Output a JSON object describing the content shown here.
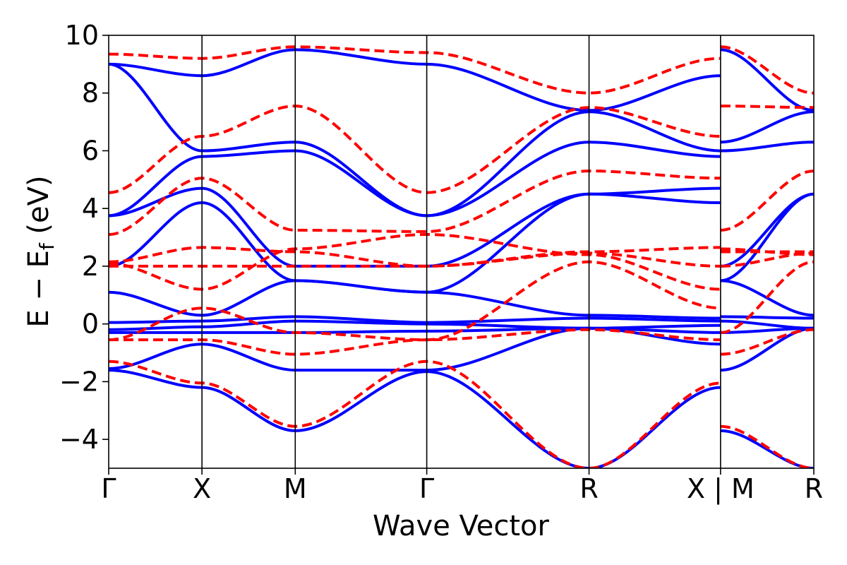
{
  "chart_data": {
    "type": "line",
    "title": "",
    "xlabel": "Wave Vector",
    "ylabel": {
      "main": "E − E",
      "subscript": "f",
      "unit": " (eV)"
    },
    "ylim": [
      -5,
      10
    ],
    "yticks": [
      -4,
      -2,
      0,
      2,
      4,
      6,
      8,
      10
    ],
    "ytick_labels": [
      "−4",
      "−2",
      "0",
      "2",
      "4",
      "6",
      "8",
      "10"
    ],
    "kpath_ticks": [
      {
        "label": "Γ",
        "pos": 0.0
      },
      {
        "label": "X",
        "pos": 1.0
      },
      {
        "label": "M",
        "pos": 2.0
      },
      {
        "label": "Γ",
        "pos": 3.41
      },
      {
        "label": "R",
        "pos": 5.15
      },
      {
        "label": "X | M",
        "pos": 6.56
      },
      {
        "label": "R",
        "pos": 7.56
      }
    ],
    "xlim": [
      0,
      7.56
    ],
    "legend": "none",
    "grid": false,
    "colors": {
      "solid_series": "#0000ff",
      "dashed_series": "#ff0000",
      "kpoint_lines": "#000000"
    },
    "series": [
      {
        "style": "solid",
        "bands": [
          {
            "x": [
              0,
              1,
              2,
              3.41,
              5.15,
              6.56,
              6.56,
              7.56
            ],
            "y": [
              -1.6,
              -2.2,
              -3.7,
              -1.65,
              -5.0,
              -2.2,
              -3.7,
              -5.0
            ]
          },
          {
            "x": [
              0,
              1,
              2,
              3.41,
              5.15,
              6.56,
              6.56,
              7.56
            ],
            "y": [
              -1.55,
              -0.7,
              -1.6,
              -1.6,
              -0.15,
              -0.7,
              -1.6,
              -0.15
            ]
          },
          {
            "x": [
              0,
              1,
              2,
              3.41,
              5.15,
              6.56,
              6.56,
              7.56
            ],
            "y": [
              -0.3,
              -0.3,
              -0.3,
              -0.25,
              -0.15,
              -0.3,
              -0.3,
              -0.15
            ]
          },
          {
            "x": [
              0,
              1,
              2,
              3.41,
              5.15,
              6.56,
              6.56,
              7.56
            ],
            "y": [
              -0.2,
              -0.1,
              0.1,
              0.0,
              -0.15,
              -0.05,
              0.1,
              -0.15
            ]
          },
          {
            "x": [
              0,
              1,
              2,
              3.41,
              5.15,
              6.56,
              6.56,
              7.56
            ],
            "y": [
              0.05,
              0.1,
              0.25,
              0.05,
              0.2,
              0.1,
              0.25,
              0.2
            ]
          },
          {
            "x": [
              0,
              1,
              2,
              3.41,
              5.15,
              6.56,
              6.56,
              7.56
            ],
            "y": [
              1.1,
              0.3,
              1.5,
              1.1,
              0.3,
              0.2,
              1.5,
              0.3
            ]
          },
          {
            "x": [
              0,
              1,
              2,
              3.41,
              5.15,
              6.56,
              6.56,
              7.56
            ],
            "y": [
              2.0,
              4.2,
              1.5,
              1.1,
              4.5,
              4.2,
              1.5,
              4.5
            ]
          },
          {
            "x": [
              0,
              1,
              2,
              3.41,
              5.15,
              6.56,
              6.56,
              7.56
            ],
            "y": [
              3.75,
              4.7,
              2.0,
              2.0,
              4.5,
              4.7,
              2.0,
              4.5
            ]
          },
          {
            "x": [
              0,
              1,
              2,
              3.41,
              5.15,
              6.56,
              6.56,
              7.56
            ],
            "y": [
              3.75,
              5.8,
              6.0,
              3.75,
              6.3,
              5.8,
              6.0,
              6.3
            ]
          },
          {
            "x": [
              0,
              1,
              2,
              3.41,
              5.15,
              6.56,
              6.56,
              7.56
            ],
            "y": [
              9.0,
              6.0,
              6.3,
              3.75,
              7.35,
              6.0,
              6.3,
              7.35
            ]
          },
          {
            "x": [
              0,
              1,
              2,
              3.41,
              5.15,
              6.56,
              6.56,
              7.56
            ],
            "y": [
              9.0,
              8.6,
              9.5,
              9.0,
              7.4,
              8.6,
              9.5,
              7.4
            ]
          }
        ]
      },
      {
        "style": "dashed",
        "bands": [
          {
            "x": [
              0,
              1,
              2,
              3.41,
              5.15,
              6.56,
              6.56,
              7.56
            ],
            "y": [
              -1.3,
              -2.05,
              -3.55,
              -1.3,
              -5.0,
              -2.05,
              -3.55,
              -5.0
            ]
          },
          {
            "x": [
              0,
              1,
              2,
              3.41,
              5.15,
              6.56,
              6.56,
              7.56
            ],
            "y": [
              -0.55,
              -0.55,
              -1.05,
              -0.55,
              -0.2,
              -0.55,
              -1.05,
              -0.2
            ]
          },
          {
            "x": [
              0,
              1,
              2,
              3.41,
              5.15,
              6.56,
              6.56,
              7.56
            ],
            "y": [
              -0.55,
              0.55,
              -0.3,
              -0.55,
              2.15,
              0.55,
              -0.3,
              2.15
            ]
          },
          {
            "x": [
              0,
              1,
              2,
              3.41,
              5.15,
              6.56,
              6.56,
              7.56
            ],
            "y": [
              2.1,
              1.2,
              2.6,
              3.1,
              2.4,
              1.2,
              2.6,
              2.4
            ]
          },
          {
            "x": [
              0,
              1,
              2,
              3.41,
              5.15,
              6.56,
              6.56,
              7.56
            ],
            "y": [
              2.0,
              2.0,
              2.0,
              2.0,
              2.45,
              2.0,
              2.0,
              2.45
            ]
          },
          {
            "x": [
              0,
              1,
              2,
              3.41,
              5.15,
              6.56,
              6.56,
              7.56
            ],
            "y": [
              2.15,
              2.65,
              2.5,
              2.0,
              2.5,
              2.65,
              2.5,
              2.5
            ]
          },
          {
            "x": [
              0,
              1,
              2,
              3.41,
              5.15,
              6.56,
              6.56,
              7.56
            ],
            "y": [
              3.1,
              5.05,
              3.25,
              3.2,
              5.3,
              5.05,
              3.25,
              5.3
            ]
          },
          {
            "x": [
              0,
              1,
              2,
              3.41,
              5.15,
              6.56,
              6.56,
              7.56
            ],
            "y": [
              4.55,
              6.5,
              7.55,
              4.55,
              7.5,
              6.5,
              7.55,
              7.5
            ]
          },
          {
            "x": [
              0,
              1,
              2,
              3.41,
              5.15,
              6.56,
              6.56,
              7.56
            ],
            "y": [
              9.35,
              9.2,
              9.6,
              9.4,
              8.0,
              9.2,
              9.6,
              8.0
            ]
          }
        ]
      }
    ]
  }
}
